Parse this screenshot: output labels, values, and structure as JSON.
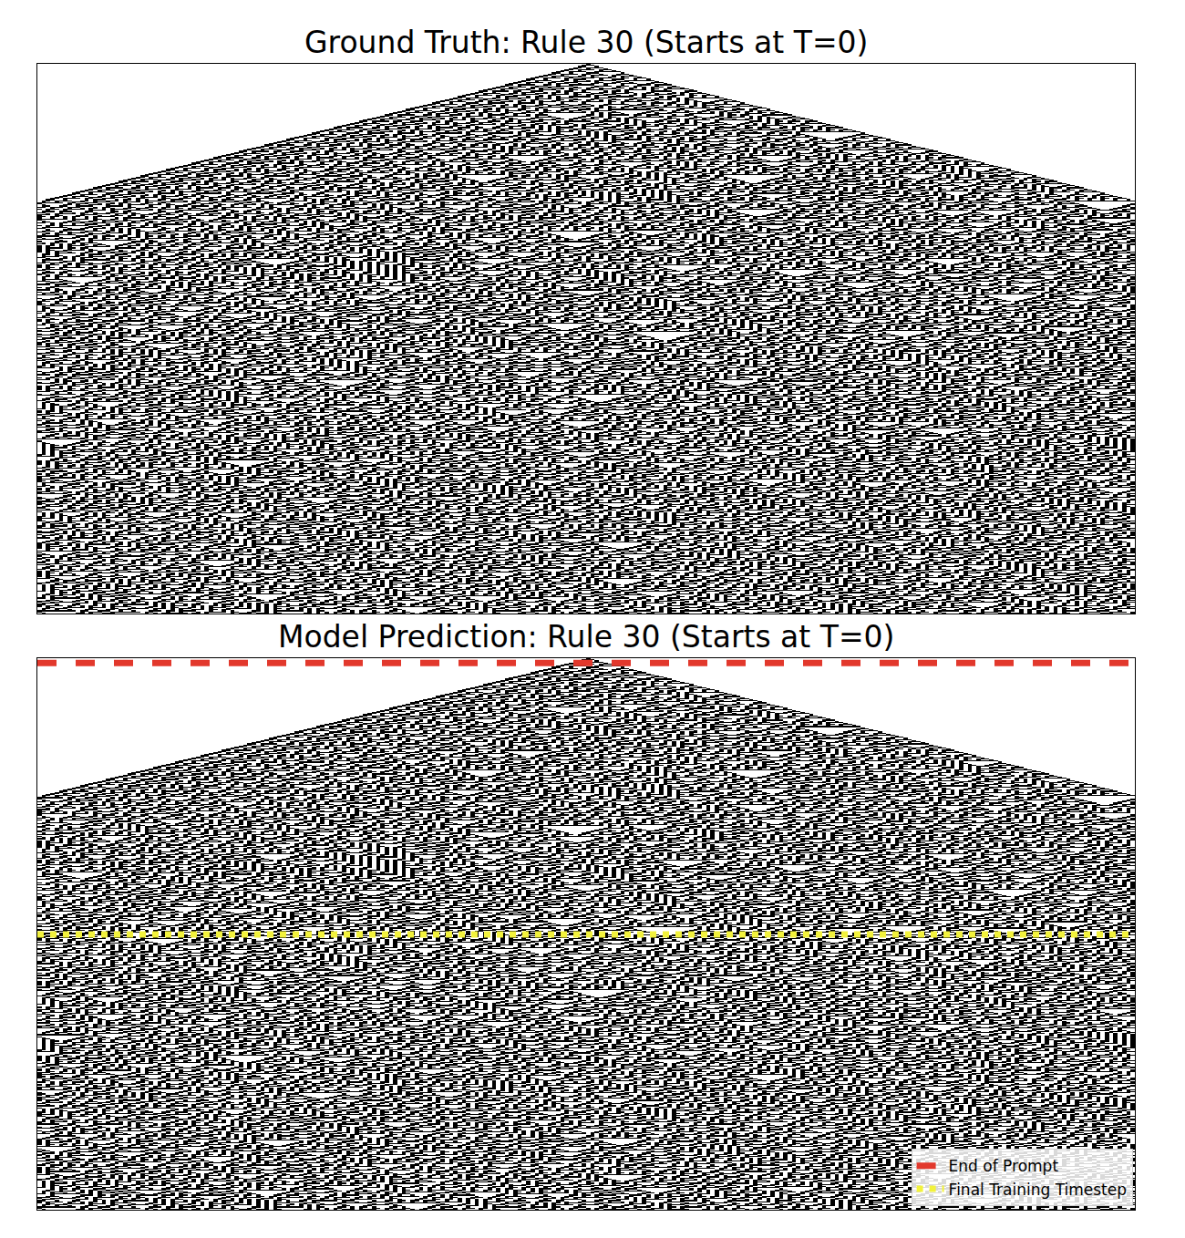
{
  "chart_data": [
    {
      "type": "heatmap",
      "title": "Ground Truth: Rule 30 (Starts at T=0)",
      "cells": {
        "rule": 30,
        "width": 256,
        "steps": 512
      },
      "colors": [
        "#ffffff",
        "#000000"
      ],
      "tick_labels": false
    },
    {
      "type": "heatmap",
      "title": "Model Prediction: Rule 30 (Starts at T=0)",
      "cells": {
        "rule": 30,
        "width": 256,
        "steps": 512
      },
      "colors": [
        "#ffffff",
        "#000000"
      ],
      "tick_labels": false,
      "lines": [
        {
          "name": "End of Prompt",
          "y": 4,
          "color": "#e2382c",
          "line_style": "dash"
        },
        {
          "name": "Final Training Timestep",
          "y": 256,
          "color": "#f2f23c",
          "line_style": "dot"
        }
      ],
      "legend": "lower right"
    }
  ]
}
